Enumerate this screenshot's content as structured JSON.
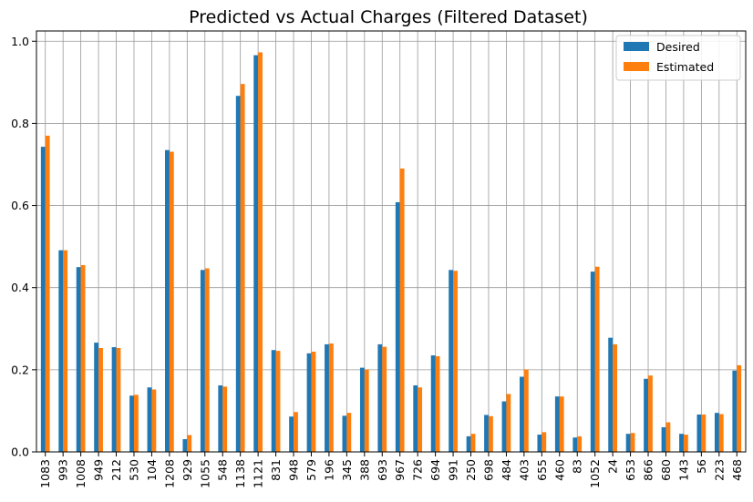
{
  "chart_data": {
    "type": "bar",
    "title": "Predicted vs Actual Charges (Filtered Dataset)",
    "xlabel": "",
    "ylabel": "",
    "categories": [
      "1083",
      "993",
      "1008",
      "949",
      "212",
      "530",
      "104",
      "1208",
      "929",
      "1055",
      "548",
      "1138",
      "1121",
      "831",
      "948",
      "579",
      "196",
      "345",
      "388",
      "693",
      "967",
      "726",
      "694",
      "991",
      "250",
      "698",
      "484",
      "403",
      "655",
      "460",
      "83",
      "1052",
      "24",
      "653",
      "866",
      "680",
      "143",
      "56",
      "223",
      "468"
    ],
    "series": [
      {
        "name": "Desired",
        "color": "#1f77b4",
        "values": [
          0.743,
          0.491,
          0.45,
          0.266,
          0.255,
          0.137,
          0.157,
          0.735,
          0.031,
          0.443,
          0.162,
          0.867,
          0.966,
          0.248,
          0.086,
          0.24,
          0.262,
          0.088,
          0.205,
          0.262,
          0.608,
          0.162,
          0.235,
          0.443,
          0.038,
          0.09,
          0.123,
          0.183,
          0.042,
          0.135,
          0.035,
          0.439,
          0.278,
          0.044,
          0.178,
          0.06,
          0.044,
          0.091,
          0.095,
          0.198
        ]
      },
      {
        "name": "Estimated",
        "color": "#ff7f0e",
        "values": [
          0.77,
          0.491,
          0.455,
          0.253,
          0.253,
          0.139,
          0.152,
          0.731,
          0.041,
          0.447,
          0.159,
          0.896,
          0.973,
          0.246,
          0.097,
          0.244,
          0.264,
          0.095,
          0.201,
          0.256,
          0.69,
          0.157,
          0.233,
          0.441,
          0.044,
          0.087,
          0.141,
          0.201,
          0.048,
          0.135,
          0.038,
          0.451,
          0.262,
          0.046,
          0.186,
          0.072,
          0.042,
          0.091,
          0.092,
          0.211
        ]
      }
    ],
    "ylim": [
      0,
      1.025
    ],
    "yticks": [
      "0.0",
      "0.2",
      "0.4",
      "0.6",
      "0.8",
      "1.0"
    ],
    "ytick_values": [
      0,
      0.2,
      0.4,
      0.6,
      0.8,
      1.0
    ],
    "grid": true,
    "legend_position": "top-right"
  }
}
